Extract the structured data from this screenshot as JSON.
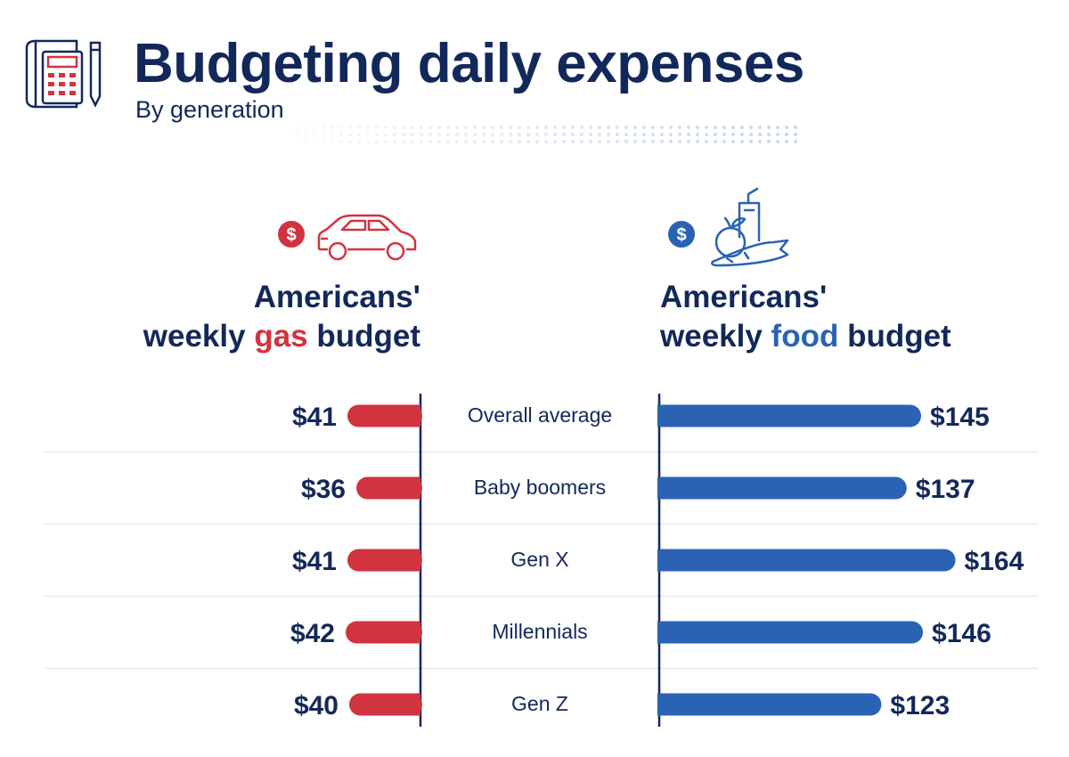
{
  "header": {
    "title": "Budgeting daily expenses",
    "subtitle": "By generation"
  },
  "icons": {
    "header": "calculator-receipt-icon",
    "gas": "car-icon",
    "food": "groceries-icon",
    "dollar_symbol": "$"
  },
  "colors": {
    "navy": "#13285a",
    "gas_red": "#d1333f",
    "food_blue": "#2a63b4"
  },
  "panels": {
    "gas": {
      "line1": "Americans'",
      "line2_pre": "weekly ",
      "line2_highlight": "gas",
      "line2_post": " budget"
    },
    "food": {
      "line1": "Americans'",
      "line2_pre": "weekly ",
      "line2_highlight": "food",
      "line2_post": " budget"
    }
  },
  "chart_data": {
    "type": "bar",
    "title": "Budgeting daily expenses",
    "subtitle": "By generation",
    "categories": [
      "Overall average",
      "Baby boomers",
      "Gen X",
      "Millennials",
      "Gen Z"
    ],
    "series": [
      {
        "name": "Americans' weekly gas budget",
        "values": [
          41,
          36,
          41,
          42,
          40
        ],
        "labels": [
          "$41",
          "$36",
          "$41",
          "$42",
          "$40"
        ],
        "color": "#d1333f",
        "direction": "left"
      },
      {
        "name": "Americans' weekly food budget",
        "values": [
          145,
          137,
          164,
          146,
          123
        ],
        "labels": [
          "$145",
          "$137",
          "$164",
          "$146",
          "$123"
        ],
        "color": "#2a63b4",
        "direction": "right"
      }
    ],
    "units": "USD per week"
  }
}
